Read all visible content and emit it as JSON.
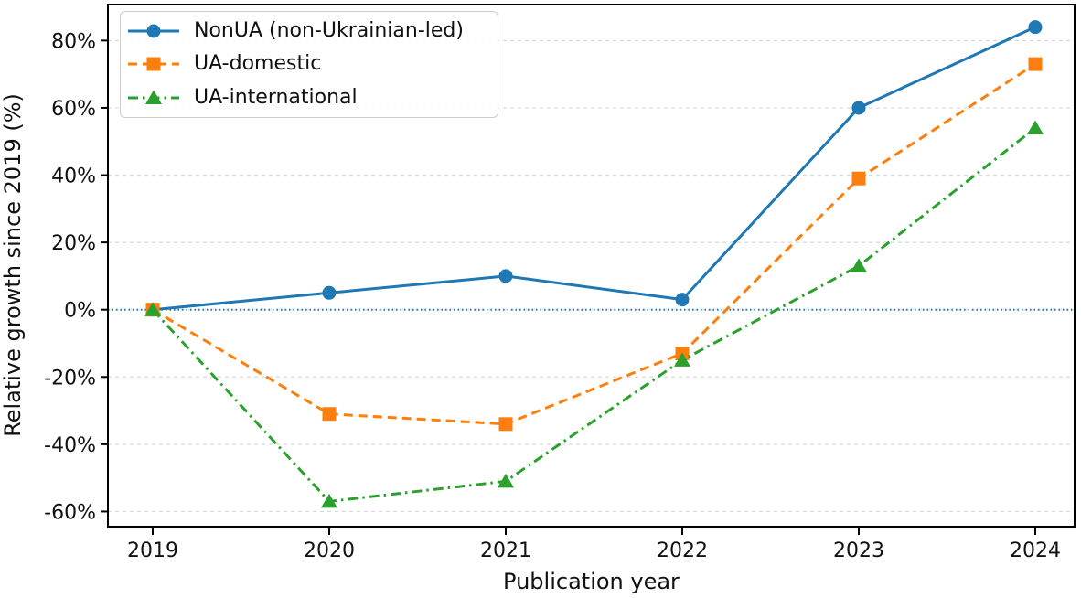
{
  "chart_data": {
    "type": "line",
    "title": "",
    "xlabel": "Publication year",
    "ylabel": "Relative growth since 2019 (%)",
    "categories": [
      "2019",
      "2020",
      "2021",
      "2022",
      "2023",
      "2024"
    ],
    "series": [
      {
        "name": "NonUA (non-Ukrainian-led)",
        "values": [
          0,
          5,
          10,
          3,
          60,
          84
        ],
        "color": "#1f77b4",
        "linestyle": "solid",
        "marker": "circle"
      },
      {
        "name": "UA-domestic",
        "values": [
          0,
          -31,
          -34,
          -13,
          39,
          73
        ],
        "color": "#ff7f0e",
        "linestyle": "dashed",
        "marker": "square"
      },
      {
        "name": "UA-international",
        "values": [
          0,
          -57,
          -51,
          -15,
          13,
          54
        ],
        "color": "#2ca02c",
        "linestyle": "dashdot",
        "marker": "triangle"
      }
    ],
    "yticks": [
      80,
      60,
      40,
      20,
      0,
      -20,
      -40,
      -60
    ],
    "ytick_labels": [
      "80%",
      "60%",
      "40%",
      "20%",
      "0%",
      "-20%",
      "-40%",
      "-60%"
    ],
    "ylim": [
      -64.5,
      90.7
    ],
    "grid": true,
    "grid_color": "#d9d9d9",
    "axis_color": "#000000",
    "zero_line": {
      "y": 0,
      "color": "#1f77b4",
      "style": "dotted"
    },
    "legend_position": "upper-left"
  }
}
